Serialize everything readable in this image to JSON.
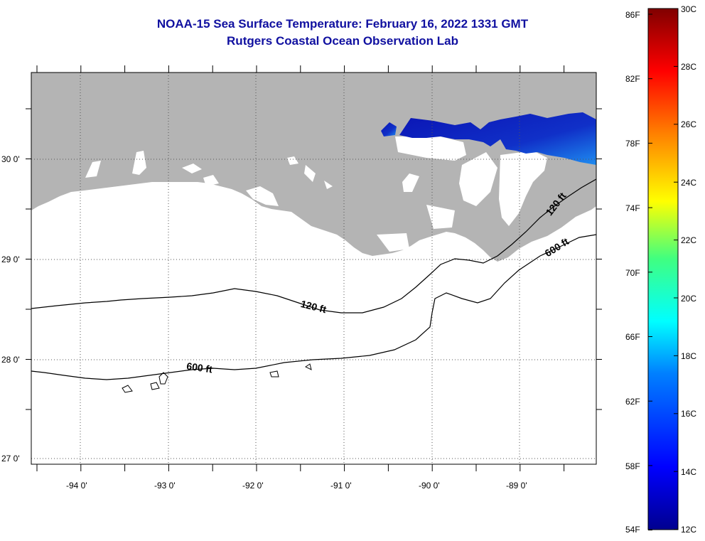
{
  "title": {
    "line1": "NOAA-15 Sea Surface Temperature:  February 16, 2022 1331 GMT",
    "line2": "Rutgers Coastal Ocean Observation Lab"
  },
  "axes": {
    "lat_labels": [
      "30 0'",
      "29 0'",
      "28 0'",
      "27 0'"
    ],
    "lon_labels": [
      "-94 0'",
      "-93 0'",
      "-92 0'",
      "-91 0'",
      "-90 0'",
      "-89 0'"
    ]
  },
  "contours": {
    "c120_west": "120 ft",
    "c600_west": "600 ft",
    "c120_east": "120 ft",
    "c600_east": "600 ft"
  },
  "colorbar": {
    "f_labels": [
      "86F",
      "82F",
      "78F",
      "74F",
      "70F",
      "66F",
      "62F",
      "58F",
      "54F"
    ],
    "c_labels": [
      "30C",
      "28C",
      "26C",
      "24C",
      "22C",
      "20C",
      "18C",
      "16C",
      "14C",
      "12C"
    ]
  },
  "colors": {
    "title": "#1010a0",
    "land": "#b4b4b4",
    "sst_cold": "#0a14b4",
    "sst_mid": "#1e6ef0"
  }
}
